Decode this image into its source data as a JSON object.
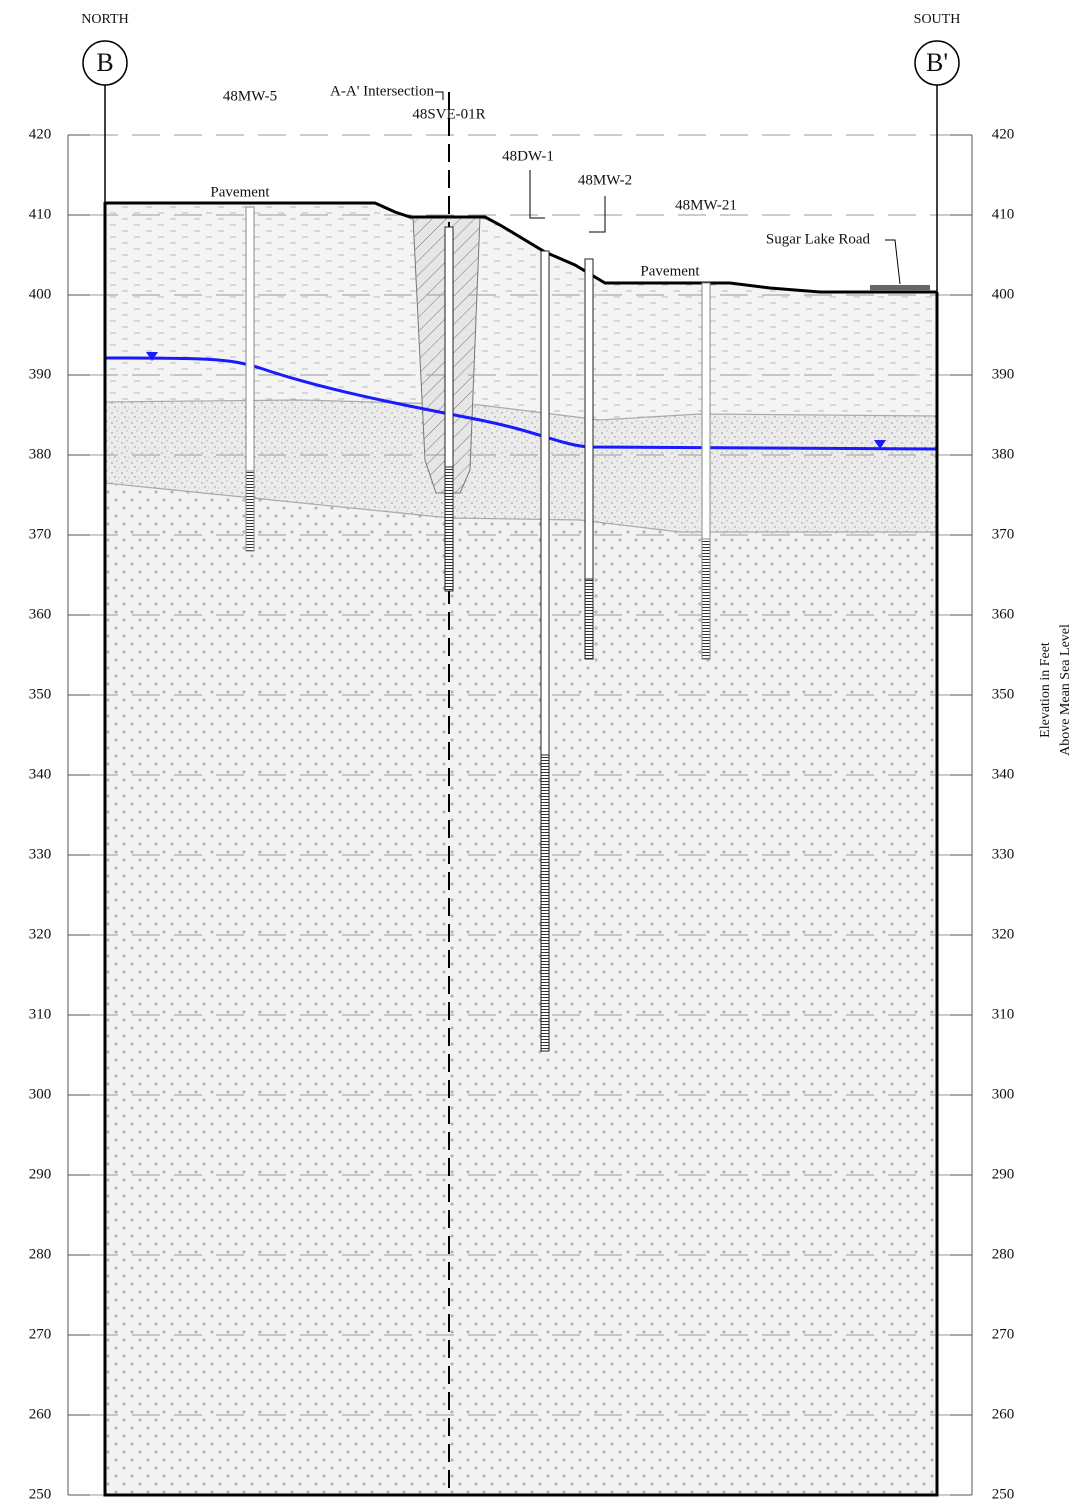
{
  "sections": {
    "left": {
      "direction": "NORTH",
      "label": "B"
    },
    "right": {
      "direction": "SOUTH",
      "label": "B'"
    }
  },
  "axis": {
    "title": [
      "Elevation in Feet",
      "Above Mean Sea Level"
    ],
    "lim": [
      250,
      420
    ],
    "ticks": [
      420,
      410,
      400,
      390,
      380,
      370,
      360,
      350,
      340,
      330,
      320,
      310,
      300,
      290,
      280,
      270,
      260,
      250
    ]
  },
  "labels": {
    "intersection": "A-A' Intersection",
    "pavement_north": "Pavement",
    "pavement_south": "Pavement",
    "road": "Sugar Lake Road"
  },
  "wells": [
    {
      "name": "48MW-5",
      "top": 411,
      "screen_top": 378,
      "bottom": 368,
      "muted": true
    },
    {
      "name": "48SVE-01R",
      "top": 408.5,
      "screen_top": 378.5,
      "bottom": 363,
      "muted": false
    },
    {
      "name": "48DW-1",
      "top": 405.5,
      "screen_top": 342.5,
      "bottom": 305.5,
      "muted": false
    },
    {
      "name": "48MW-2",
      "top": 404.5,
      "screen_top": 364.5,
      "bottom": 354.5,
      "muted": false
    },
    {
      "name": "48MW-21",
      "top": 401.5,
      "screen_top": 369.5,
      "bottom": 354.5,
      "muted": true
    }
  ]
}
